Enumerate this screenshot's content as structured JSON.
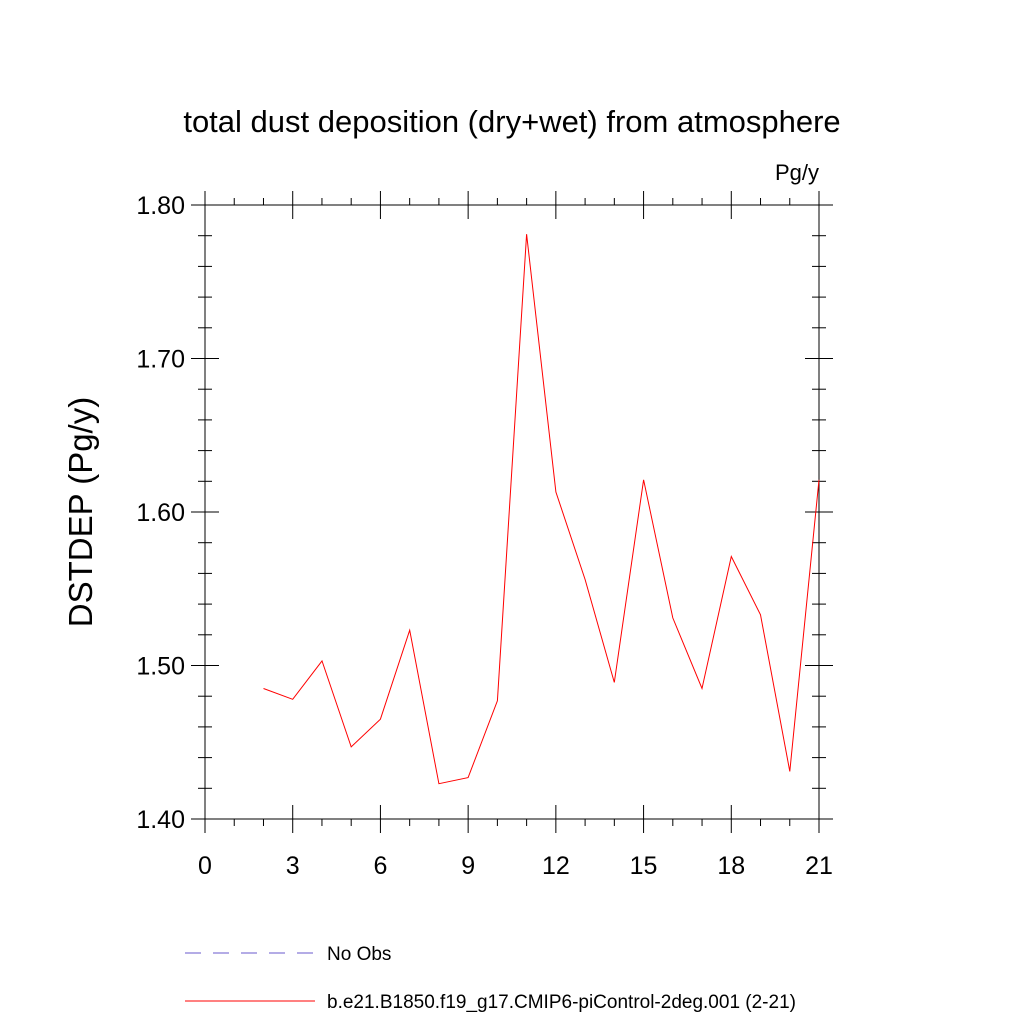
{
  "chart_data": {
    "type": "line",
    "title": "total dust deposition (dry+wet) from atmosphere",
    "units_label": "Pg/y",
    "ylabel": "DSTDEP  (Pg/y)",
    "xlabel": "",
    "xlim": [
      0,
      21
    ],
    "ylim": [
      1.4,
      1.8
    ],
    "x_ticks": [
      0,
      3,
      6,
      9,
      12,
      15,
      18,
      21
    ],
    "x_tick_labels": [
      "0",
      "3",
      "6",
      "9",
      "12",
      "15",
      "18",
      "21"
    ],
    "x_minor_step": 1,
    "y_ticks": [
      1.4,
      1.5,
      1.6,
      1.7,
      1.8
    ],
    "y_tick_labels": [
      "1.40",
      "1.50",
      "1.60",
      "1.70",
      "1.80"
    ],
    "y_minor_step": 0.02,
    "grid": false,
    "legend_position": "bottom",
    "series": [
      {
        "name": "b.e21.B1850.f19_g17.CMIP6-piControl-2deg.001 (2-21)",
        "color": "#ff0000",
        "style": "solid",
        "x": [
          2,
          3,
          4,
          5,
          6,
          7,
          8,
          9,
          10,
          11,
          12,
          13,
          14,
          15,
          16,
          17,
          18,
          19,
          20,
          21
        ],
        "y": [
          1.485,
          1.478,
          1.503,
          1.447,
          1.465,
          1.523,
          1.423,
          1.427,
          1.477,
          1.781,
          1.613,
          1.556,
          1.489,
          1.621,
          1.531,
          1.485,
          1.571,
          1.533,
          1.431,
          1.621
        ]
      },
      {
        "name": "No Obs",
        "color": "#6a5acd",
        "style": "dashed",
        "x": [],
        "y": []
      }
    ]
  }
}
